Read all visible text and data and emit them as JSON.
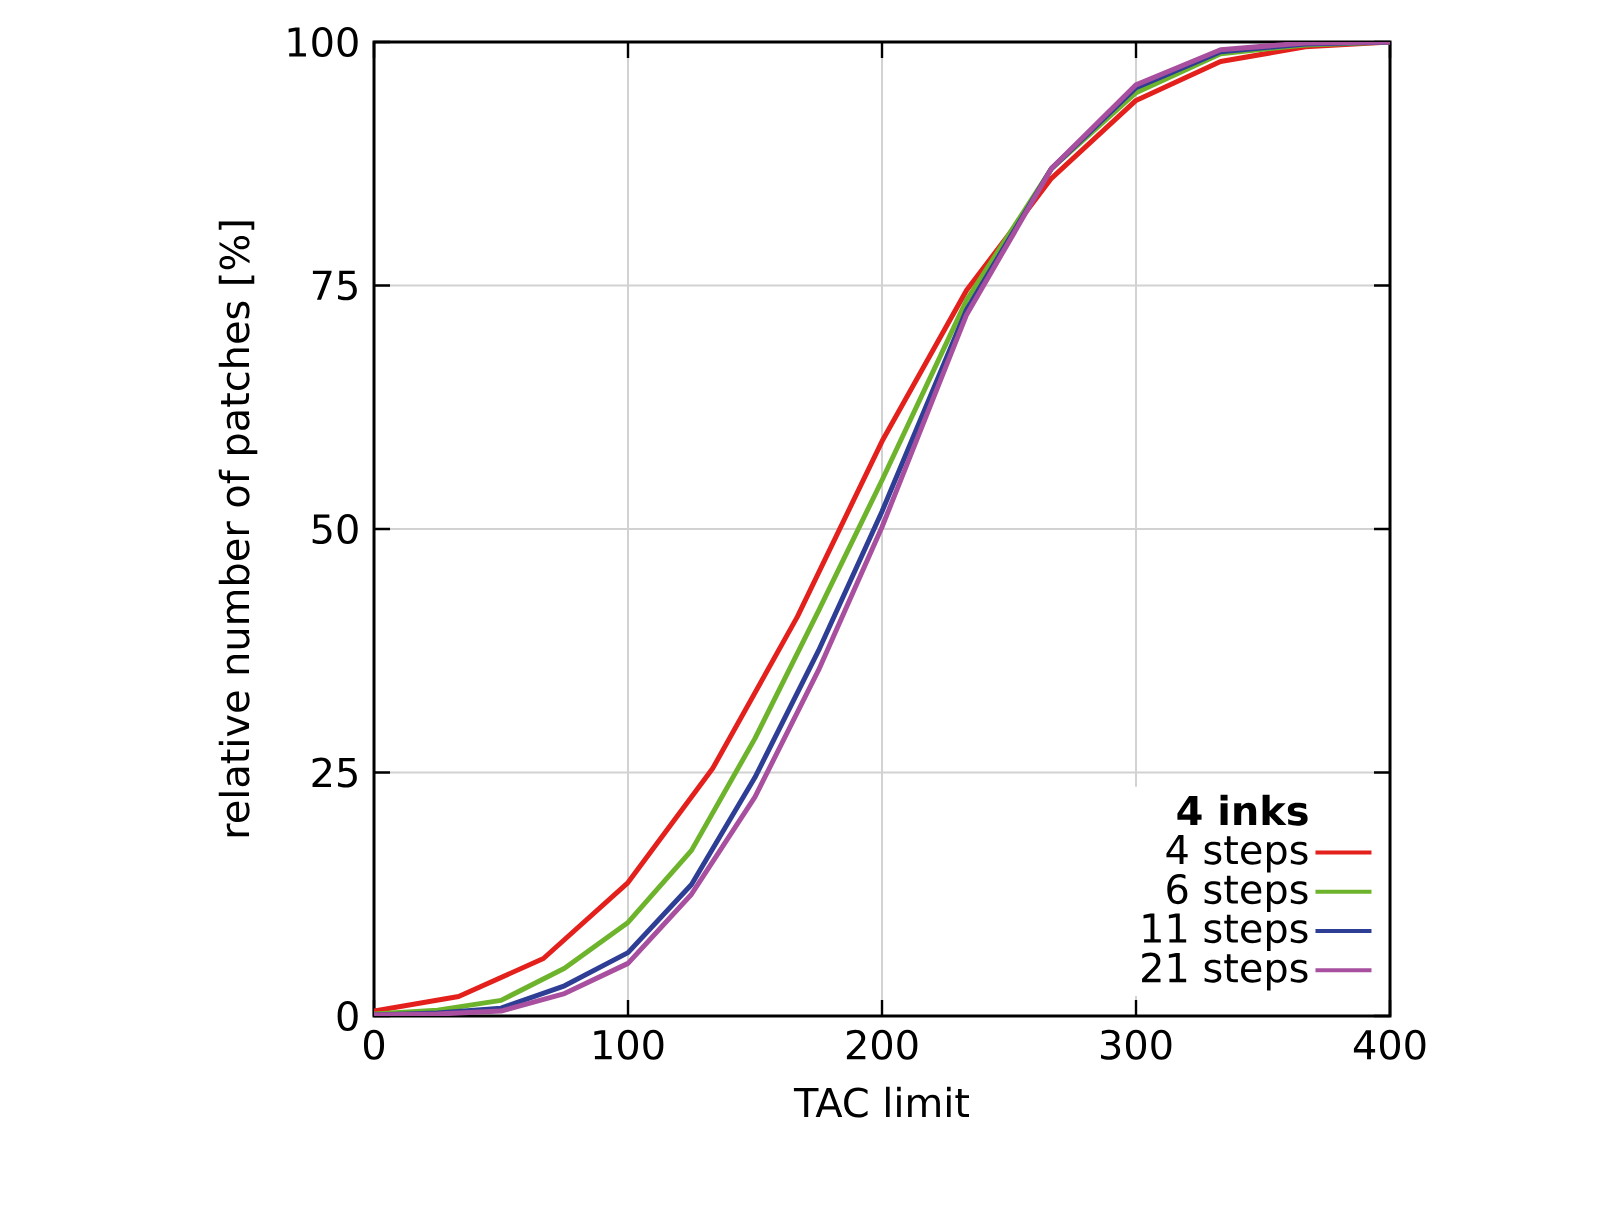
{
  "chart_data": {
    "type": "line",
    "xlabel": "TAC limit",
    "ylabel": "relative number of patches [%]",
    "legend_title": "**4 inks**",
    "xlim": [
      0,
      400
    ],
    "xticks": [
      0,
      100,
      200,
      300,
      400
    ],
    "ylim": [
      0,
      100
    ],
    "yticks": [
      0,
      25,
      50,
      75,
      100
    ],
    "grid": true,
    "legend": "bottom right",
    "marker": "none",
    "line_style": "solid",
    "series": [
      {
        "name": "4 steps",
        "color": "#e3201c",
        "x": [
          0,
          33.3,
          66.7,
          100,
          133.3,
          166.7,
          200,
          233.3,
          266.7,
          300,
          333.3,
          366.7,
          400
        ],
        "values": [
          0.5,
          2.0,
          5.9,
          13.7,
          25.4,
          41,
          59,
          74.5,
          86,
          94,
          98,
          99.5,
          100
        ]
      },
      {
        "name": "6 steps",
        "color": "#6db42c",
        "x": [
          0,
          25,
          50,
          75,
          100,
          125,
          150,
          175,
          200,
          233.3,
          266.7,
          300,
          333.3,
          366.7,
          400
        ],
        "values": [
          0.2,
          0.6,
          1.6,
          4.9,
          9.6,
          17,
          28.5,
          41.6,
          55,
          73.5,
          87,
          94.8,
          98.8,
          99.7,
          100
        ]
      },
      {
        "name": "11 steps",
        "color": "#2d3e94",
        "x": [
          0,
          25,
          50,
          75,
          100,
          125,
          150,
          175,
          200,
          233.3,
          266.7,
          300,
          333.3,
          366.7,
          400
        ],
        "values": [
          0.1,
          0.3,
          0.8,
          3.1,
          6.5,
          13.5,
          24.5,
          37.5,
          51.8,
          72.5,
          87,
          95.3,
          99,
          99.8,
          100
        ]
      },
      {
        "name": "21 steps",
        "color": "#a8509f",
        "x": [
          0,
          25,
          50,
          75,
          100,
          125,
          150,
          175,
          200,
          233.3,
          266.7,
          300,
          333.3,
          366.7,
          400
        ],
        "values": [
          0.1,
          0.2,
          0.5,
          2.3,
          5.4,
          12.5,
          22.5,
          35.5,
          50.2,
          72,
          87,
          95.6,
          99.2,
          99.9,
          100
        ]
      }
    ]
  }
}
